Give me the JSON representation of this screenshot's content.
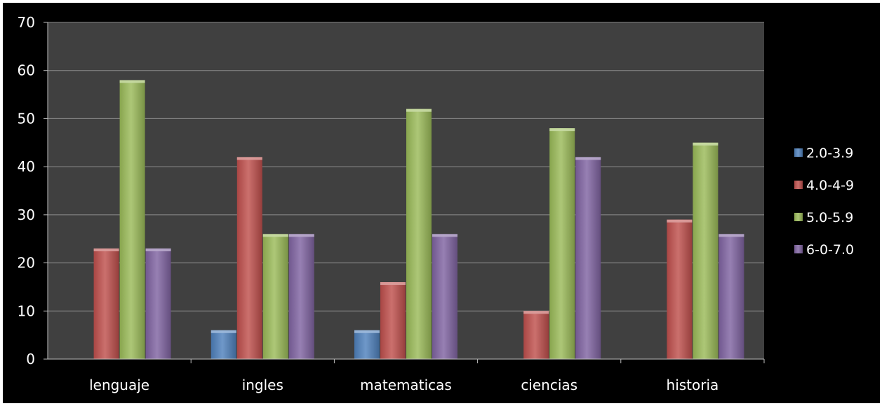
{
  "chart_data": {
    "type": "bar",
    "categories": [
      "lenguaje",
      "ingles",
      "matematicas",
      "ciencias",
      "historia"
    ],
    "series": [
      {
        "name": "2.0-3.9",
        "color": "#4f81bd",
        "values": [
          0,
          6,
          6,
          0,
          0
        ]
      },
      {
        "name": "4.0-4-9",
        "color": "#c0504d",
        "values": [
          23,
          42,
          16,
          10,
          29
        ]
      },
      {
        "name": "5.0-5.9",
        "color": "#9bbb59",
        "values": [
          58,
          26,
          52,
          48,
          45
        ]
      },
      {
        "name": "6-0-7.0",
        "color": "#8064a2",
        "values": [
          23,
          26,
          26,
          42,
          26
        ]
      }
    ],
    "ylim": [
      0,
      70
    ],
    "yticks": [
      0,
      10,
      20,
      30,
      40,
      50,
      60,
      70
    ],
    "grid": true,
    "legend_position": "right",
    "background": "#000000",
    "plot_background": "#404040",
    "gridline_color": "#8c8c8c",
    "text_color": "#ffffff"
  }
}
